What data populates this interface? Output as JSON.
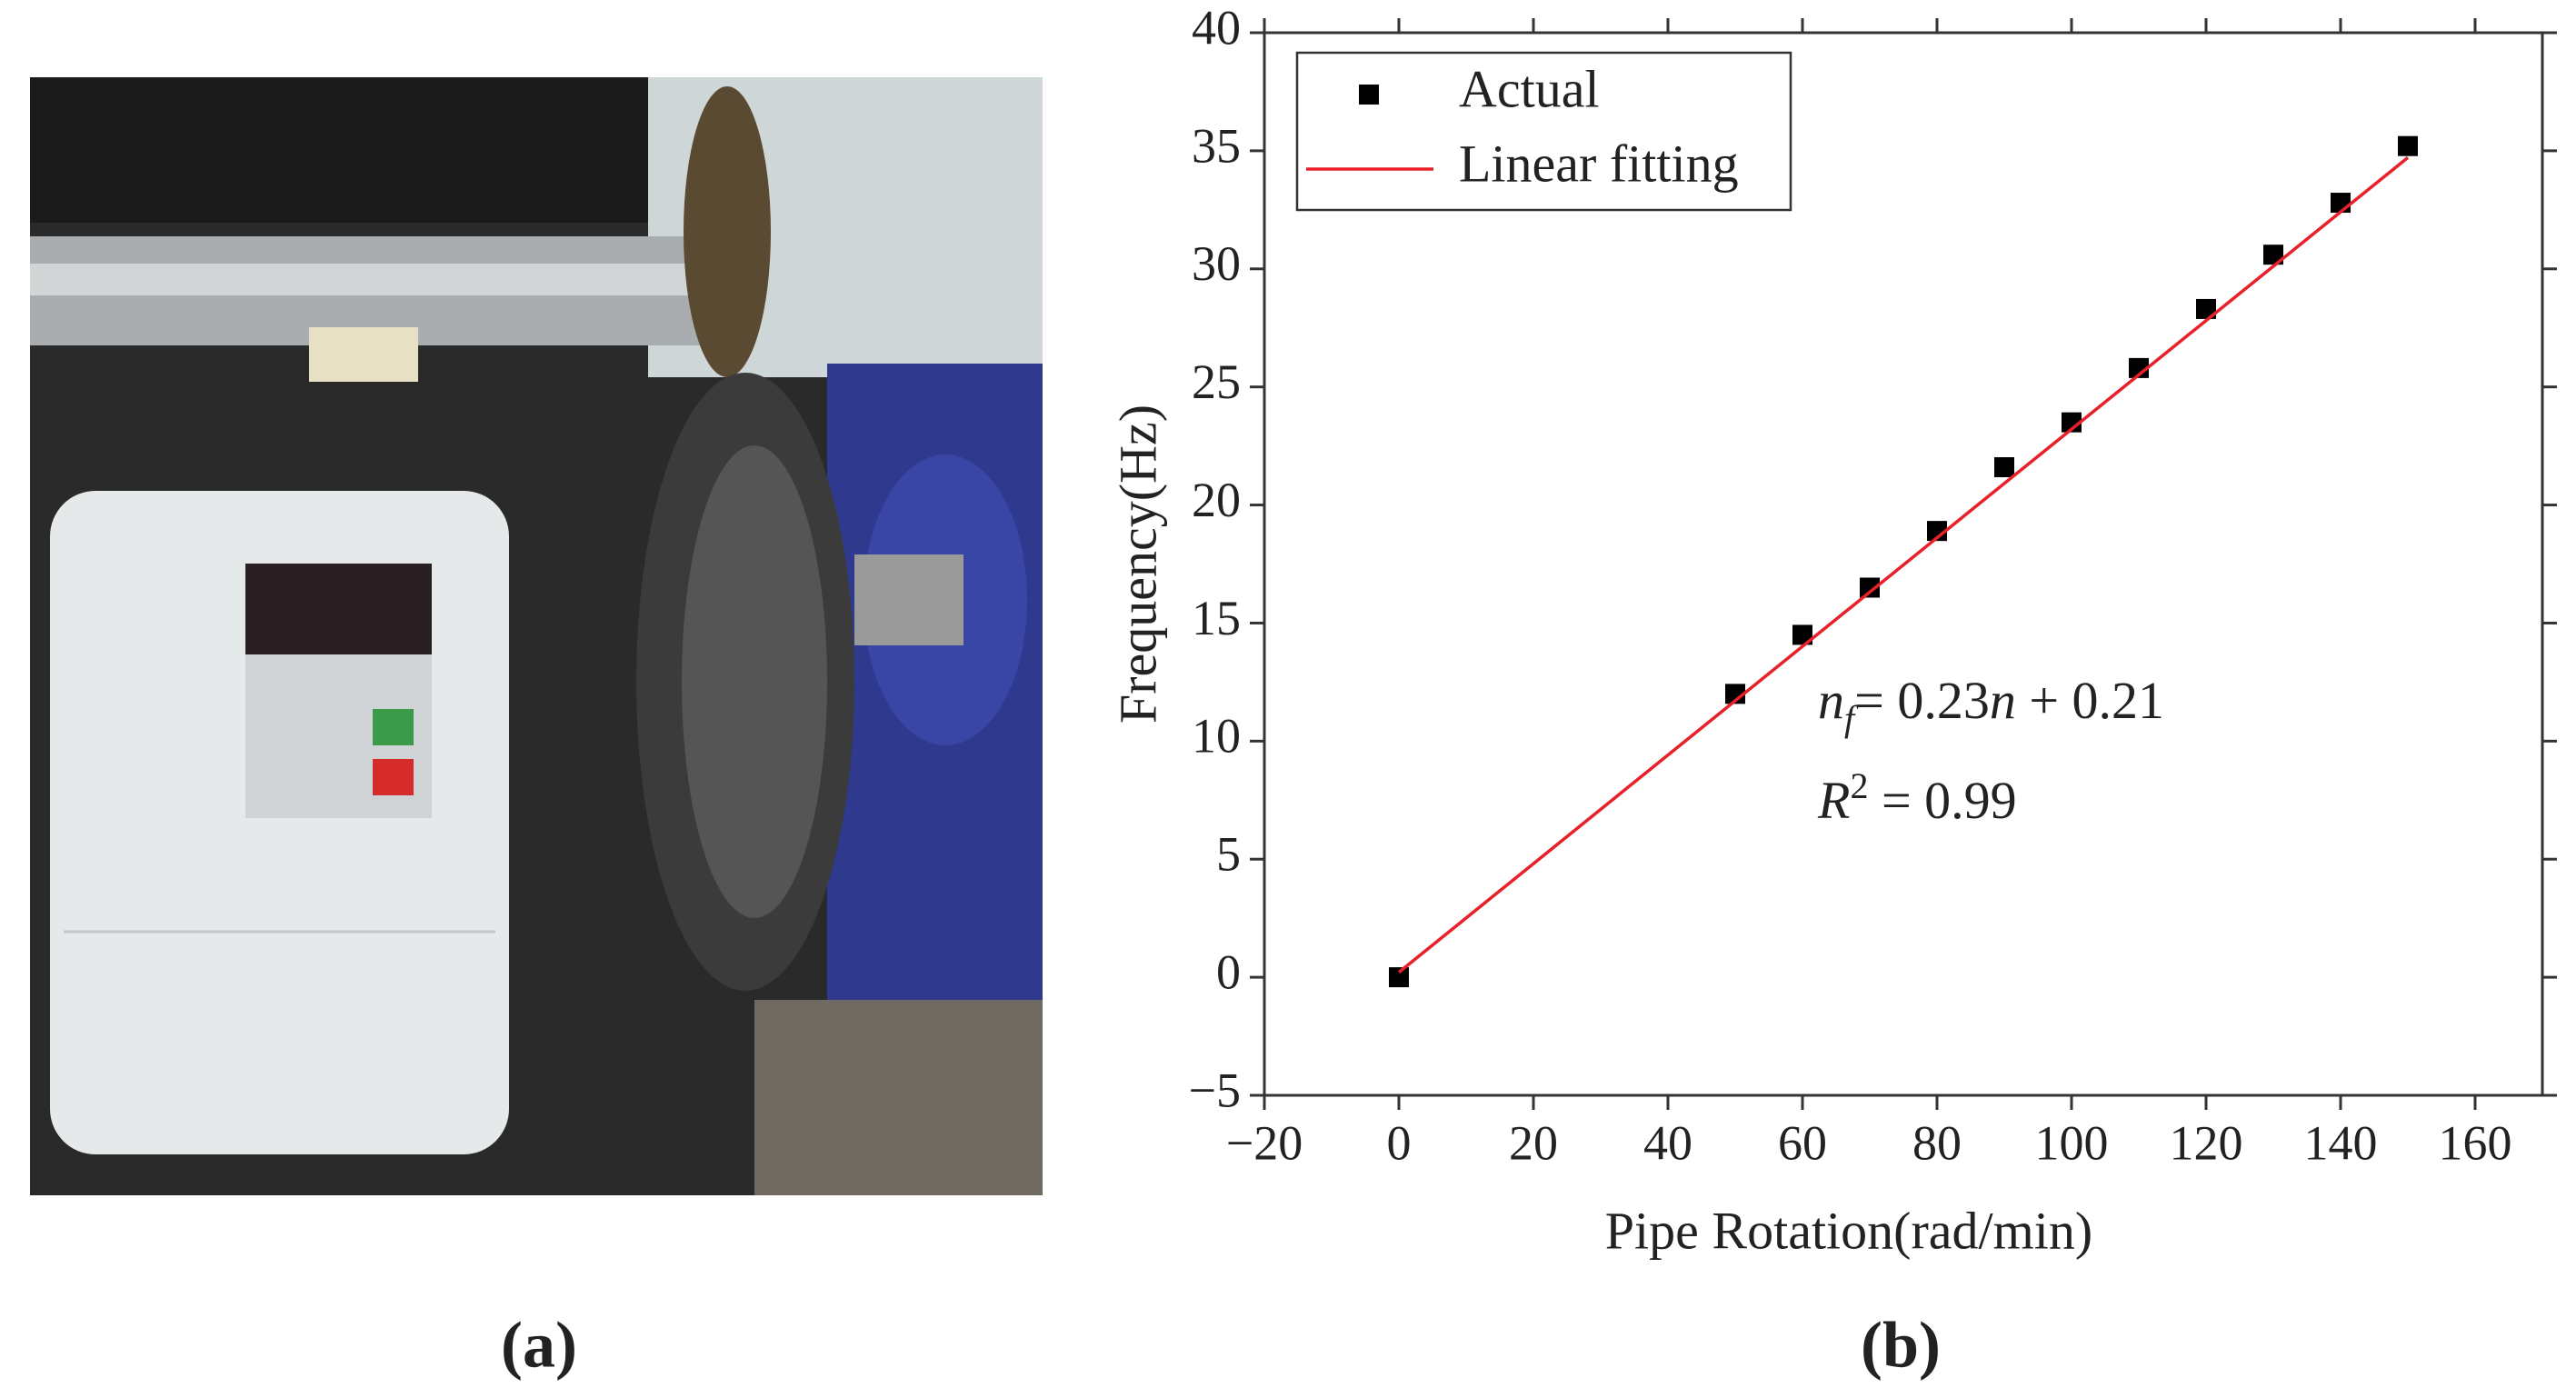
{
  "photo": {
    "label": "(a)"
  },
  "chart_data": {
    "type": "scatter",
    "panel_label": "(b)",
    "x_label": "Pipe Rotation(rad/min)",
    "y_label": "Frequency(Hz)",
    "xlim": [
      -20,
      170
    ],
    "ylim": [
      -5,
      40
    ],
    "xticks": [
      {
        "value": -20,
        "label": "−20"
      },
      0,
      20,
      40,
      60,
      80,
      100,
      120,
      140,
      160
    ],
    "yticks": [
      {
        "value": -5,
        "label": "−5"
      },
      0,
      5,
      10,
      15,
      20,
      25,
      30,
      35,
      40
    ],
    "series": [
      {
        "name": "Actual",
        "color": "#000000",
        "kind": "marker",
        "x": [
          0,
          50,
          60,
          70,
          80,
          90,
          100,
          110,
          120,
          130,
          140,
          150
        ],
        "values": [
          0,
          12,
          14.5,
          16.5,
          18.9,
          21.6,
          23.5,
          25.8,
          28.3,
          30.6,
          32.8,
          35.2
        ]
      },
      {
        "name": "Linear fitting",
        "color": "#e8202a",
        "kind": "line",
        "x": [
          0,
          150
        ],
        "values": [
          0.21,
          34.71
        ]
      }
    ],
    "annotations": [
      [
        "n",
        "f",
        "= 0.23",
        "n",
        " + 0.21"
      ],
      [
        "R",
        "2",
        " = 0.99"
      ]
    ],
    "legend": "upper left"
  }
}
